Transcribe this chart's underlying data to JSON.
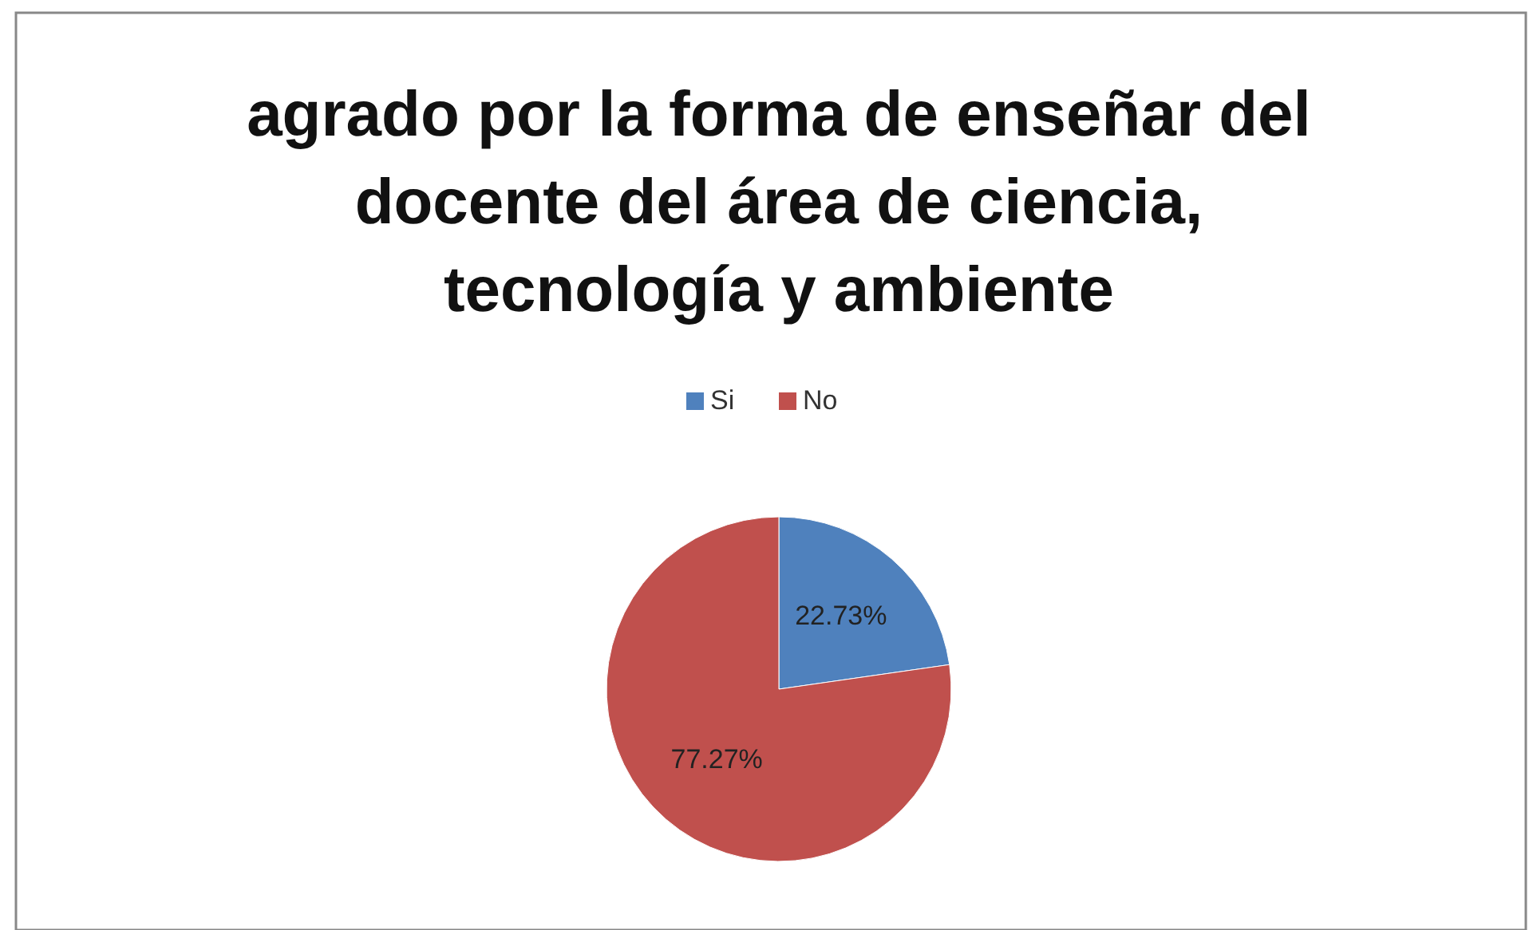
{
  "chart_data": {
    "type": "pie",
    "title": "agrado por la forma de enseñar del docente del área de ciencia, tecnología y ambiente",
    "categories": [
      "Si",
      "No"
    ],
    "values": [
      22.73,
      77.27
    ],
    "colors": [
      "#4f81bd",
      "#c0504d"
    ],
    "value_labels": [
      "22.73%",
      "77.27%"
    ],
    "legend": "top"
  }
}
